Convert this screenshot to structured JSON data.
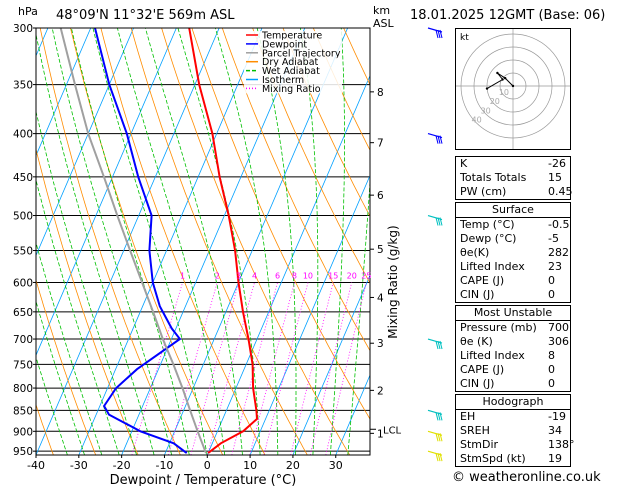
{
  "header": {
    "hpa_label": "hPa",
    "location": "48°09'N  11°32'E  569m  ASL",
    "km_label": "km",
    "asl_label": "ASL",
    "datetime": "18.01.2025  12GMT  (Base: 06)"
  },
  "footer": {
    "credit": "© weatheronline.co.uk"
  },
  "colors": {
    "temperature": "#ff0000",
    "dewpoint": "#0000ff",
    "parcel": "#a0a0a0",
    "dry_adiabat": "#ff8c00",
    "wet_adiabat": "#00c000",
    "isotherm": "#00a0ff",
    "mixing_ratio": "#ff00ff",
    "wind_barb": "#00c0c0",
    "low_wind": "#e0e000"
  },
  "chart_data": {
    "type": "line",
    "xlabel": "Dewpoint / Temperature (°C)",
    "ylabel": "Mixing Ratio (g/kg)",
    "x_ticks": [
      -40,
      -30,
      -20,
      -10,
      0,
      10,
      20,
      30
    ],
    "pressure_levels": [
      300,
      350,
      400,
      450,
      500,
      550,
      600,
      650,
      700,
      750,
      800,
      850,
      900,
      950
    ],
    "xlim": [
      -40,
      38
    ],
    "ylim": [
      300,
      960
    ],
    "skew": true,
    "km_ticks": [
      {
        "label": "8",
        "p": 357
      },
      {
        "label": "7",
        "p": 410
      },
      {
        "label": "6",
        "p": 473
      },
      {
        "label": "5",
        "p": 548
      },
      {
        "label": "4",
        "p": 625
      },
      {
        "label": "3",
        "p": 708
      },
      {
        "label": "2",
        "p": 805
      },
      {
        "label": "1",
        "p": 905
      }
    ],
    "lcl": {
      "label": "LCL",
      "p": 895
    },
    "mixing_ratio_labels": [
      "1",
      "2",
      "3",
      "4",
      "6",
      "8",
      "10",
      "15",
      "20",
      "25"
    ],
    "mixing_ratio_values": [
      1,
      2,
      3,
      4,
      6,
      8,
      10,
      15,
      20,
      25
    ],
    "legend": {
      "placement": "top-left",
      "entries": [
        "Temperature",
        "Dewpoint",
        "Parcel Trajectory",
        "Dry Adiabat",
        "Wet Adiabat",
        "Isotherm",
        "Mixing Ratio"
      ]
    },
    "series": [
      {
        "name": "Temperature",
        "points": [
          {
            "p": 955,
            "t": 0
          },
          {
            "p": 930,
            "t": 2
          },
          {
            "p": 900,
            "t": 6
          },
          {
            "p": 870,
            "t": 8
          },
          {
            "p": 850,
            "t": 7
          },
          {
            "p": 800,
            "t": 4
          },
          {
            "p": 750,
            "t": 1.5
          },
          {
            "p": 700,
            "t": -2
          },
          {
            "p": 650,
            "t": -6
          },
          {
            "p": 600,
            "t": -10
          },
          {
            "p": 550,
            "t": -14
          },
          {
            "p": 500,
            "t": -19
          },
          {
            "p": 450,
            "t": -25
          },
          {
            "p": 400,
            "t": -31
          },
          {
            "p": 350,
            "t": -39
          },
          {
            "p": 300,
            "t": -47
          }
        ]
      },
      {
        "name": "Dewpoint",
        "points": [
          {
            "p": 955,
            "t": -5
          },
          {
            "p": 930,
            "t": -9
          },
          {
            "p": 900,
            "t": -18
          },
          {
            "p": 860,
            "t": -27
          },
          {
            "p": 840,
            "t": -29
          },
          {
            "p": 800,
            "t": -28
          },
          {
            "p": 760,
            "t": -25
          },
          {
            "p": 700,
            "t": -18
          },
          {
            "p": 680,
            "t": -21
          },
          {
            "p": 640,
            "t": -26
          },
          {
            "p": 600,
            "t": -30
          },
          {
            "p": 550,
            "t": -34
          },
          {
            "p": 500,
            "t": -37
          },
          {
            "p": 450,
            "t": -44
          },
          {
            "p": 400,
            "t": -51
          },
          {
            "p": 350,
            "t": -60
          },
          {
            "p": 300,
            "t": -69
          }
        ]
      },
      {
        "name": "Parcel Trajectory",
        "points": [
          {
            "p": 955,
            "t": -0.5
          },
          {
            "p": 895,
            "t": -5
          },
          {
            "p": 850,
            "t": -8.5
          },
          {
            "p": 800,
            "t": -12.5
          },
          {
            "p": 750,
            "t": -17
          },
          {
            "p": 700,
            "t": -22
          },
          {
            "p": 650,
            "t": -27
          },
          {
            "p": 600,
            "t": -32.5
          },
          {
            "p": 550,
            "t": -38.5
          },
          {
            "p": 500,
            "t": -45
          },
          {
            "p": 450,
            "t": -52
          },
          {
            "p": 400,
            "t": -60
          },
          {
            "p": 350,
            "t": -68
          },
          {
            "p": 300,
            "t": -77
          }
        ]
      }
    ],
    "wind_barbs": [
      {
        "p": 300,
        "color": "blue"
      },
      {
        "p": 400,
        "color": "blue"
      },
      {
        "p": 500,
        "color": "teal"
      },
      {
        "p": 700,
        "color": "teal"
      },
      {
        "p": 850,
        "color": "teal"
      },
      {
        "p": 900,
        "color": "yellow"
      },
      {
        "p": 950,
        "color": "yellow"
      }
    ]
  },
  "hodograph": {
    "unit_label": "kt",
    "ring_labels": [
      "10",
      "20",
      "30",
      "40"
    ],
    "trace": [
      {
        "u": 0,
        "v": 0
      },
      {
        "u": -6,
        "v": 6
      },
      {
        "u": -12,
        "v": 10
      },
      {
        "u": -8,
        "v": 5
      },
      {
        "u": -20,
        "v": -2
      }
    ]
  },
  "indices": [
    {
      "key": "K",
      "value": "-26"
    },
    {
      "key": "Totals Totals",
      "value": "15"
    },
    {
      "key": "PW (cm)",
      "value": "0.45"
    }
  ],
  "surface": {
    "title": "Surface",
    "rows": [
      {
        "key": "Temp (°C)",
        "value": "-0.5"
      },
      {
        "key": "Dewp (°C)",
        "value": "-5"
      },
      {
        "key": "θe(K)",
        "value": "282"
      },
      {
        "key": "Lifted Index",
        "value": "23"
      },
      {
        "key": "CAPE (J)",
        "value": "0"
      },
      {
        "key": "CIN (J)",
        "value": "0"
      }
    ]
  },
  "most_unstable": {
    "title": "Most Unstable",
    "rows": [
      {
        "key": "Pressure (mb)",
        "value": "700"
      },
      {
        "key": "θe (K)",
        "value": "306"
      },
      {
        "key": "Lifted Index",
        "value": "8"
      },
      {
        "key": "CAPE (J)",
        "value": "0"
      },
      {
        "key": "CIN (J)",
        "value": "0"
      }
    ]
  },
  "hodograph_table": {
    "title": "Hodograph",
    "rows": [
      {
        "key": "EH",
        "value": "-19"
      },
      {
        "key": "SREH",
        "value": "34"
      },
      {
        "key": "StmDir",
        "value": "138°"
      },
      {
        "key": "StmSpd (kt)",
        "value": "19"
      }
    ]
  }
}
